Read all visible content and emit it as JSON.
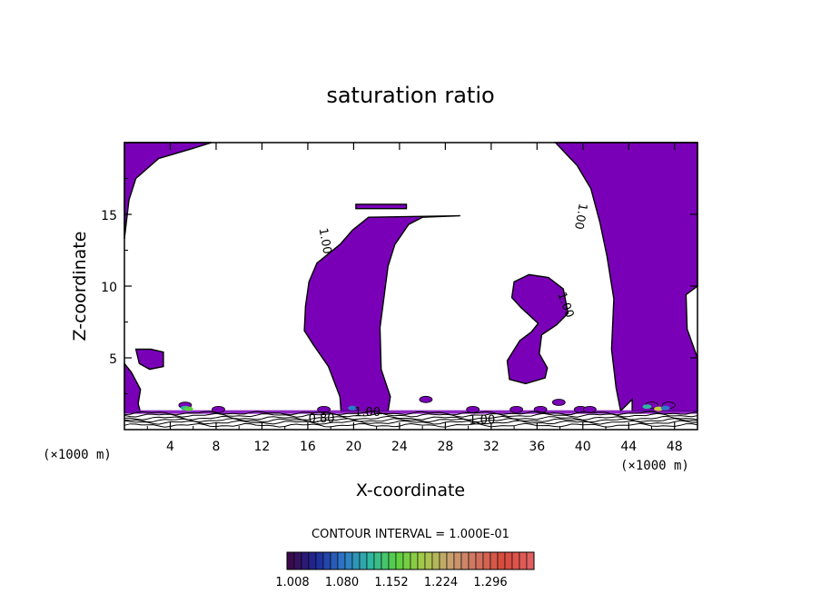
{
  "chart_data": {
    "type": "contour",
    "title": "saturation ratio",
    "xlabel": "X-coordinate",
    "ylabel": "Z-coordinate",
    "x_unit": "(×1000 m)",
    "y_unit": "(×1000 m)",
    "xlim": [
      0,
      50
    ],
    "ylim": [
      0,
      20
    ],
    "x_ticks": [
      4,
      8,
      12,
      16,
      20,
      24,
      28,
      32,
      36,
      40,
      44,
      48
    ],
    "y_ticks": [
      5,
      10,
      15
    ],
    "contour_interval_label": "CONTOUR INTERVAL = 1.000E-01",
    "contour_labels": [
      "1.00",
      "1.00",
      "1.00",
      "0.80",
      "1.00",
      "1.00"
    ],
    "colorbar": {
      "tick_labels": [
        "1.008",
        "1.080",
        "1.152",
        "1.224",
        "1.296"
      ],
      "colors": [
        "#3a0a4a",
        "#1e2a9a",
        "#2f78c8",
        "#2fb7a0",
        "#5ad040",
        "#a6c84a",
        "#c8a070",
        "#d07060",
        "#d84a3a",
        "#e06060"
      ]
    },
    "fill_color": "#7a00b8",
    "regions": [
      {
        "name": "upper-left",
        "points": [
          [
            0,
            20
          ],
          [
            7.6,
            20
          ],
          [
            6,
            19.6
          ],
          [
            3,
            18.9
          ],
          [
            1,
            17.5
          ],
          [
            0.4,
            16
          ],
          [
            0,
            13.3
          ]
        ]
      },
      {
        "name": "left-column",
        "points": [
          [
            0,
            4.6
          ],
          [
            0.6,
            4
          ],
          [
            1.4,
            2.8
          ],
          [
            1.2,
            1.8
          ],
          [
            1.4,
            1.2
          ],
          [
            0,
            1.2
          ]
        ]
      },
      {
        "name": "left-blob",
        "points": [
          [
            1,
            5.6
          ],
          [
            2.3,
            5.6
          ],
          [
            3.4,
            5.4
          ],
          [
            3.4,
            4.4
          ],
          [
            2.2,
            4.2
          ],
          [
            1.3,
            4.6
          ]
        ]
      },
      {
        "name": "center-column",
        "points": [
          [
            21.3,
            14.8
          ],
          [
            29.3,
            14.9
          ],
          [
            26,
            14.8
          ],
          [
            24.8,
            14.3
          ],
          [
            23.6,
            12.9
          ],
          [
            23,
            11.4
          ],
          [
            22.3,
            7.1
          ],
          [
            22.4,
            4.2
          ],
          [
            23.2,
            2.3
          ],
          [
            23,
            1.3
          ],
          [
            18.9,
            1.3
          ],
          [
            18.8,
            2.3
          ],
          [
            17.8,
            4.4
          ],
          [
            16.5,
            5.9
          ],
          [
            15.7,
            6.9
          ],
          [
            15.8,
            8.6
          ],
          [
            16.1,
            10.3
          ],
          [
            16.8,
            11.6
          ],
          [
            18.8,
            12.9
          ],
          [
            19.9,
            13.9
          ]
        ]
      },
      {
        "name": "center-strip",
        "points": [
          [
            20.2,
            15.7
          ],
          [
            24.6,
            15.7
          ],
          [
            24.6,
            15.4
          ],
          [
            20.2,
            15.4
          ]
        ]
      },
      {
        "name": "right-blob",
        "points": [
          [
            34,
            10.3
          ],
          [
            35.3,
            10.8
          ],
          [
            37,
            10.6
          ],
          [
            38.3,
            9.8
          ],
          [
            38.7,
            8.1
          ],
          [
            37.7,
            7.3
          ],
          [
            36.4,
            6.6
          ],
          [
            36.2,
            5.3
          ],
          [
            36.9,
            4.3
          ],
          [
            36.7,
            3.6
          ],
          [
            35,
            3.2
          ],
          [
            33.6,
            3.5
          ],
          [
            33.4,
            4.8
          ],
          [
            34.5,
            6.2
          ],
          [
            35.5,
            6.8
          ],
          [
            36.1,
            7.4
          ],
          [
            34.6,
            8.5
          ],
          [
            33.8,
            9.2
          ]
        ]
      },
      {
        "name": "upper-right",
        "points": [
          [
            37.6,
            20
          ],
          [
            50,
            20
          ],
          [
            50,
            10
          ],
          [
            49,
            9.4
          ],
          [
            49.1,
            7
          ],
          [
            50,
            5
          ],
          [
            50,
            1.3
          ],
          [
            44.3,
            1.3
          ],
          [
            44.3,
            2.1
          ],
          [
            43.3,
            1.3
          ],
          [
            42.9,
            2.9
          ],
          [
            42.5,
            5.6
          ],
          [
            42.7,
            9.1
          ],
          [
            42.1,
            12.1
          ],
          [
            41.5,
            14.4
          ],
          [
            40.7,
            16.8
          ],
          [
            39.5,
            18.4
          ]
        ]
      }
    ],
    "speckles": [
      {
        "x": 5.3,
        "y": 1.7
      },
      {
        "x": 8.2,
        "y": 1.4
      },
      {
        "x": 17.4,
        "y": 1.4
      },
      {
        "x": 26.3,
        "y": 2.1
      },
      {
        "x": 30.4,
        "y": 1.4
      },
      {
        "x": 34.2,
        "y": 1.4
      },
      {
        "x": 36.3,
        "y": 1.4
      },
      {
        "x": 37.9,
        "y": 1.9
      },
      {
        "x": 39.8,
        "y": 1.4
      },
      {
        "x": 40.6,
        "y": 1.4
      },
      {
        "x": 46,
        "y": 1.7
      },
      {
        "x": 47.5,
        "y": 1.7
      }
    ],
    "bottom_contours_z": [
      0.3,
      0.5,
      0.65,
      0.8,
      1.0,
      1.15
    ]
  }
}
